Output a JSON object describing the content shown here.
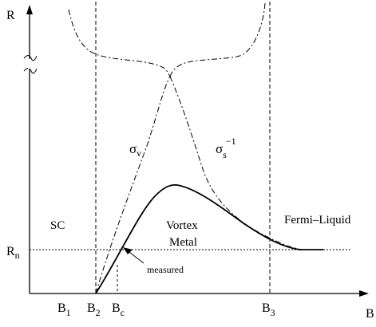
{
  "axes": {
    "y_label": "R",
    "x_label": "B",
    "rn": {
      "main": "R",
      "sub": "n"
    }
  },
  "field_ticks": [
    {
      "main": "B",
      "sub": "1"
    },
    {
      "main": "B",
      "sub": "2"
    },
    {
      "main": "B",
      "sub": "c"
    },
    {
      "main": "B",
      "sub": "3"
    }
  ],
  "regions": {
    "sc": "SC",
    "vortex_metal_line1": "Vortex",
    "vortex_metal_line2": "Metal",
    "fermi_liquid": "Fermi–Liquid"
  },
  "curves": {
    "sigma_v": {
      "main": "σ",
      "sub": "v"
    },
    "sigma_s_inv": {
      "main": "σ",
      "sub": "s",
      "sup": "−1"
    },
    "measured": "measured"
  },
  "colors": {
    "ink": "#000000",
    "background": "#ffffff"
  }
}
